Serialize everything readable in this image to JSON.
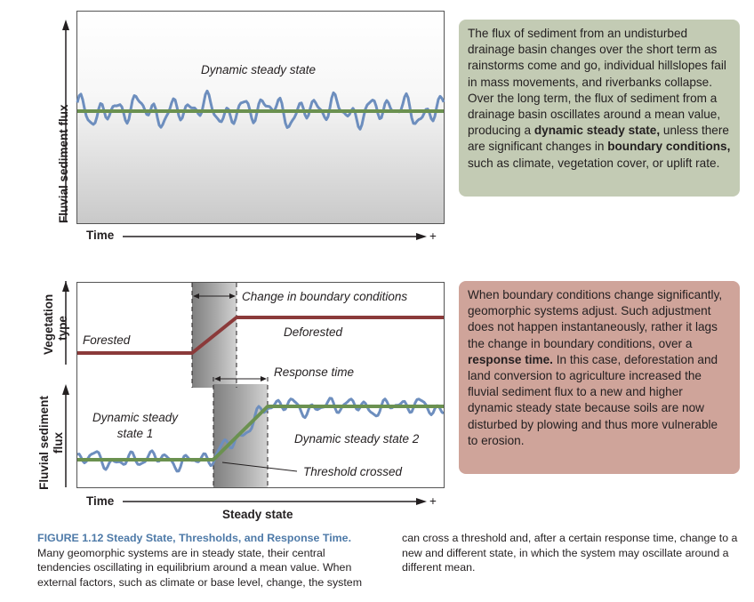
{
  "top_panel": {
    "y_axis_label": "Fluvial sediment flux",
    "x_axis_label": "Time",
    "x_axis_plus": "+",
    "curve_label": "Dynamic steady state",
    "mean_line_color": "#6b9150",
    "fluctuation_color": "#6d8ebe"
  },
  "top_text_box": {
    "segments": [
      {
        "text": "The flux of sediment from an undisturbed drainage basin changes over the short term as rainstorms come and go, individual hillslopes fail in mass movements, and riverbanks collapse. Over the long term, the flux of sediment from a drainage basin oscillates around a mean value, producing a ",
        "bold": false
      },
      {
        "text": "dynamic steady state,",
        "bold": true
      },
      {
        "text": " unless there are significant changes in ",
        "bold": false
      },
      {
        "text": "boundary conditions,",
        "bold": true
      },
      {
        "text": " such as climate, vegetation cover, or uplift rate.",
        "bold": false
      }
    ],
    "background": "#c3cbb4"
  },
  "bottom_panel": {
    "y_axis_label_top": "Vegetation type",
    "y_axis_label_bottom": "Fluvial sediment flux",
    "x_axis_label": "Time",
    "x_axis_plus": "+",
    "below_axis_label": "Steady state",
    "labels": {
      "change": "Change in boundary conditions",
      "forested": "Forested",
      "deforested": "Deforested",
      "response_time": "Response time",
      "steady_state_1": "Dynamic steady state 1",
      "steady_state_2": "Dynamic steady state 2",
      "threshold": "Threshold crossed"
    },
    "vegetation_line_color": "#8b3a3a",
    "mean_line_color": "#6b9150",
    "fluctuation_color": "#6d8ebe"
  },
  "bottom_text_box": {
    "segments": [
      {
        "text": "When boundary conditions change significantly, geomorphic systems adjust. Such adjustment does not happen instantaneously, rather it lags the change in boundary conditions, over a ",
        "bold": false
      },
      {
        "text": "response time.",
        "bold": true
      },
      {
        "text": " In this case, deforestation and land conversion to agriculture increased the fluvial sediment flux to a new and higher dynamic steady state because soils are now disturbed by plowing and thus more vulnerable to erosion.",
        "bold": false
      }
    ],
    "background": "#cfa49a"
  },
  "caption": {
    "title": "FIGURE 1.12  Steady State, Thresholds, and Response Time.",
    "body_left": "Many geomorphic systems are in steady state, their central tendencies oscillating in equilibrium around a mean value. When external factors, such as climate or base level, change, the system",
    "body_right": "can cross a threshold and, after a certain response time, change to a new and different state, in which the system may oscillate around a different mean.",
    "title_color": "#4e7aa8"
  }
}
